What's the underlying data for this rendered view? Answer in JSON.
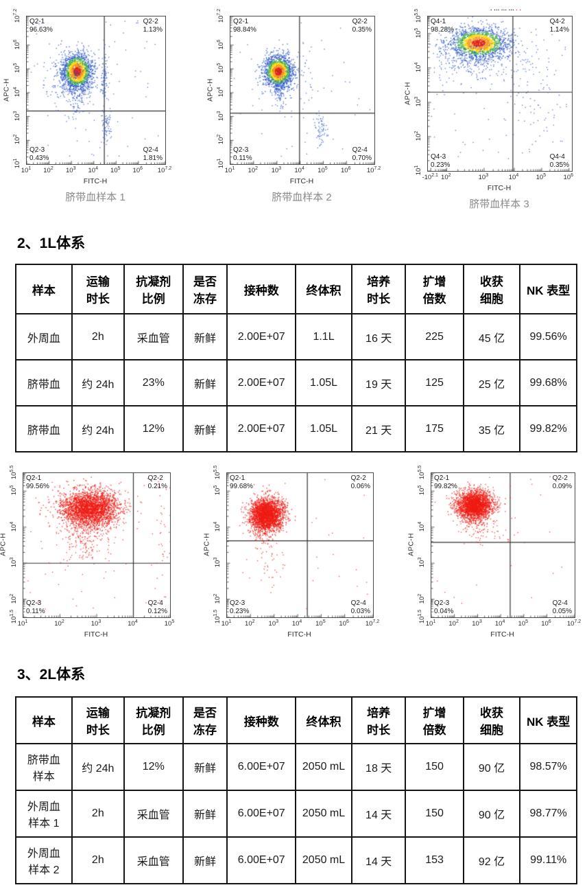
{
  "sections": {
    "s2": "2、1L体系",
    "s3": "3、2L体系"
  },
  "axis": {
    "xlabel": "FITC-H",
    "ylabel": "APC-H"
  },
  "chart_data": [
    {
      "type": "scatter",
      "style": "density",
      "caption": "脐带血样本 1",
      "xlabel": "FITC-H",
      "ylabel": "APC-H",
      "x_ticks": [
        {
          "label": "10^1",
          "f": 0
        },
        {
          "label": "10^2",
          "f": 0.161
        },
        {
          "label": "10^3",
          "f": 0.323
        },
        {
          "label": "10^4",
          "f": 0.484
        },
        {
          "label": "10^5",
          "f": 0.645
        },
        {
          "label": "10^6",
          "f": 0.806
        },
        {
          "label": "10^7.2",
          "f": 1
        }
      ],
      "y_ticks": [
        {
          "label": "10^1",
          "f": 0
        },
        {
          "label": "10^2",
          "f": 0.161
        },
        {
          "label": "10^3",
          "f": 0.323
        },
        {
          "label": "10^4",
          "f": 0.484
        },
        {
          "label": "10^5",
          "f": 0.645
        },
        {
          "label": "10^6",
          "f": 0.806
        },
        {
          "label": "10^7.2",
          "f": 1
        }
      ],
      "gate": {
        "fx": 0.56,
        "fy": 0.64
      },
      "quadrants": [
        {
          "name": "Q2-1",
          "value": "96.63%",
          "pos": "tl"
        },
        {
          "name": "Q2-2",
          "value": "1.13%",
          "pos": "tr"
        },
        {
          "name": "Q2-3",
          "value": "0.43%",
          "pos": "bl"
        },
        {
          "name": "Q2-4",
          "value": "1.81%",
          "pos": "br"
        }
      ],
      "cluster": {
        "fx": 0.36,
        "fy": 0.37,
        "sx": 0.055,
        "sy": 0.062,
        "n": 1700
      },
      "extras": [
        {
          "fx": 0.36,
          "fy": 0.52,
          "sx": 0.045,
          "sy": 0.09,
          "n": 160
        },
        {
          "fx": 0.56,
          "fy": 0.42,
          "sx": 0.014,
          "sy": 0.1,
          "n": 90
        },
        {
          "fx": 0.57,
          "fy": 0.74,
          "sx": 0.018,
          "sy": 0.055,
          "n": 70
        },
        {
          "fx": 0.3,
          "fy": 0.4,
          "sx": 0.1,
          "sy": 0.09,
          "n": 120
        }
      ],
      "noise": 70
    },
    {
      "type": "scatter",
      "style": "density",
      "caption": "脐带血样本 2",
      "xlabel": "FITC-H",
      "ylabel": "APC-H",
      "x_ticks": [
        {
          "label": "10^1",
          "f": 0
        },
        {
          "label": "10^2",
          "f": 0.161
        },
        {
          "label": "10^3",
          "f": 0.323
        },
        {
          "label": "10^4",
          "f": 0.484
        },
        {
          "label": "10^5",
          "f": 0.645
        },
        {
          "label": "10^6",
          "f": 0.806
        },
        {
          "label": "10^7.2",
          "f": 1
        }
      ],
      "y_ticks": [
        {
          "label": "10^1",
          "f": 0
        },
        {
          "label": "10^2",
          "f": 0.161
        },
        {
          "label": "10^3",
          "f": 0.323
        },
        {
          "label": "10^4",
          "f": 0.484
        },
        {
          "label": "10^5",
          "f": 0.645
        },
        {
          "label": "10^6",
          "f": 0.806
        },
        {
          "label": "10^7.2",
          "f": 1
        }
      ],
      "gate": {
        "fx": 0.48,
        "fy": 0.655
      },
      "quadrants": [
        {
          "name": "Q2-1",
          "value": "98.84%",
          "pos": "tl"
        },
        {
          "name": "Q2-2",
          "value": "0.35%",
          "pos": "tr"
        },
        {
          "name": "Q2-3",
          "value": "0.11%",
          "pos": "bl"
        },
        {
          "name": "Q2-4",
          "value": "0.70%",
          "pos": "br"
        }
      ],
      "cluster": {
        "fx": 0.33,
        "fy": 0.37,
        "sx": 0.05,
        "sy": 0.055,
        "n": 1700
      },
      "extras": [
        {
          "fx": 0.34,
          "fy": 0.5,
          "sx": 0.03,
          "sy": 0.06,
          "n": 130
        },
        {
          "fx": 0.63,
          "fy": 0.77,
          "sx": 0.018,
          "sy": 0.05,
          "n": 60
        },
        {
          "fx": 0.55,
          "fy": 0.4,
          "sx": 0.06,
          "sy": 0.12,
          "n": 35
        }
      ],
      "noise": 45
    },
    {
      "type": "scatter",
      "style": "density",
      "caption": "脐带血样本 3",
      "xlabel": "FITC-H",
      "ylabel": "APC-H",
      "mini_title": {
        "dark": "▪ ▪▪▪ ▪▪▪ ▪▪▪",
        "red": "▪ ▪"
      },
      "x_ticks": [
        {
          "label": "-10^2.1",
          "f": 0.02
        },
        {
          "label": "10^2",
          "f": 0.13
        },
        {
          "label": "10^3",
          "f": 0.39
        },
        {
          "label": "10^4",
          "f": 0.6
        },
        {
          "label": "10^5",
          "f": 0.79
        },
        {
          "label": "10^6",
          "f": 0.98
        }
      ],
      "y_ticks": [
        {
          "label": "10^1",
          "f": 0
        },
        {
          "label": "10^2",
          "f": 0.222
        },
        {
          "label": "10^3",
          "f": 0.444
        },
        {
          "label": "10^4",
          "f": 0.667
        },
        {
          "label": "10^5",
          "f": 0.889
        },
        {
          "label": "10^5.5",
          "f": 1
        }
      ],
      "gate": {
        "fx": 0.59,
        "fy": 0.49
      },
      "quadrants": [
        {
          "name": "Q4-1",
          "value": "98.28%",
          "pos": "tl"
        },
        {
          "name": "Q4-2",
          "value": "1.14%",
          "pos": "tr"
        },
        {
          "name": "Q4-3",
          "value": "0.23%",
          "pos": "bl"
        },
        {
          "name": "Q4-4",
          "value": "0.35%",
          "pos": "br"
        }
      ],
      "cluster": {
        "fx": 0.35,
        "fy": 0.17,
        "sx": 0.1,
        "sy": 0.05,
        "n": 1900
      },
      "extras": [
        {
          "fx": 0.3,
          "fy": 0.29,
          "sx": 0.12,
          "sy": 0.06,
          "n": 220
        },
        {
          "fx": 0.7,
          "fy": 0.33,
          "sx": 0.08,
          "sy": 0.14,
          "n": 60
        },
        {
          "fx": 0.76,
          "fy": 0.66,
          "sx": 0.05,
          "sy": 0.12,
          "n": 25
        }
      ],
      "noise": 90
    },
    {
      "type": "scatter",
      "style": "red",
      "caption": "",
      "xlabel": "FITC-H",
      "ylabel": "APC-H",
      "x_ticks": [
        {
          "label": "10^1",
          "f": 0
        },
        {
          "label": "10^2",
          "f": 0.25
        },
        {
          "label": "10^3",
          "f": 0.5
        },
        {
          "label": "10^4",
          "f": 0.75
        },
        {
          "label": "10^5",
          "f": 1
        }
      ],
      "y_ticks": [
        {
          "label": "10^1.5",
          "f": 0
        },
        {
          "label": "10^2",
          "f": 0.125
        },
        {
          "label": "10^3",
          "f": 0.375
        },
        {
          "label": "10^4",
          "f": 0.625
        },
        {
          "label": "10^5",
          "f": 0.875
        },
        {
          "label": "10^5.5",
          "f": 1
        }
      ],
      "gate": {
        "fx": 0.75,
        "fy": 0.625
      },
      "quadrants": [
        {
          "name": "Q2-1",
          "value": "99.56%",
          "pos": "tl"
        },
        {
          "name": "Q2-2",
          "value": "0.21%",
          "pos": "tr"
        },
        {
          "name": "Q2-3",
          "value": "0.11%",
          "pos": "bl"
        },
        {
          "name": "Q2-4",
          "value": "0.12%",
          "pos": "br"
        }
      ],
      "cluster": {
        "fx": 0.45,
        "fy": 0.24,
        "sx": 0.1,
        "sy": 0.065,
        "n": 2700
      },
      "extras": [
        {
          "fx": 0.42,
          "fy": 0.42,
          "sx": 0.09,
          "sy": 0.1,
          "n": 260
        },
        {
          "fx": 0.95,
          "fy": 0.45,
          "sx": 0.025,
          "sy": 0.22,
          "n": 35
        }
      ],
      "noise": 55
    },
    {
      "type": "scatter",
      "style": "red",
      "caption": "",
      "xlabel": "FITC-H",
      "ylabel": "APC-H",
      "x_ticks": [
        {
          "label": "10^1",
          "f": 0
        },
        {
          "label": "10^2",
          "f": 0.161
        },
        {
          "label": "10^3",
          "f": 0.323
        },
        {
          "label": "10^4",
          "f": 0.484
        },
        {
          "label": "10^5",
          "f": 0.645
        },
        {
          "label": "10^6",
          "f": 0.806
        },
        {
          "label": "10^7.2",
          "f": 1
        }
      ],
      "y_ticks": [
        {
          "label": "10^1.5",
          "f": 0
        },
        {
          "label": "10^2",
          "f": 0.125
        },
        {
          "label": "10^3",
          "f": 0.375
        },
        {
          "label": "10^4",
          "f": 0.625
        },
        {
          "label": "10^5",
          "f": 0.875
        },
        {
          "label": "10^5.5",
          "f": 1
        }
      ],
      "gate": {
        "fx": 0.55,
        "fy": 0.47
      },
      "quadrants": [
        {
          "name": "Q2-1",
          "value": "99.68%",
          "pos": "tl"
        },
        {
          "name": "Q2-2",
          "value": "0.06%",
          "pos": "tr"
        },
        {
          "name": "Q2-3",
          "value": "0.23%",
          "pos": "bl"
        },
        {
          "name": "Q2-4",
          "value": "0.03%",
          "pos": "br"
        }
      ],
      "cluster": {
        "fx": 0.27,
        "fy": 0.28,
        "sx": 0.055,
        "sy": 0.055,
        "n": 2500
      },
      "extras": [
        {
          "fx": 0.24,
          "fy": 0.38,
          "sx": 0.05,
          "sy": 0.06,
          "n": 210
        },
        {
          "fx": 0.3,
          "fy": 0.58,
          "sx": 0.04,
          "sy": 0.12,
          "n": 35
        }
      ],
      "noise": 28
    },
    {
      "type": "scatter",
      "style": "red",
      "caption": "",
      "xlabel": "FITC-H",
      "ylabel": "APC-H",
      "x_ticks": [
        {
          "label": "10^1",
          "f": 0
        },
        {
          "label": "10^2",
          "f": 0.161
        },
        {
          "label": "10^3",
          "f": 0.323
        },
        {
          "label": "10^4",
          "f": 0.484
        },
        {
          "label": "10^5",
          "f": 0.645
        },
        {
          "label": "10^6",
          "f": 0.806
        },
        {
          "label": "10^7.2",
          "f": 1
        }
      ],
      "y_ticks": [
        {
          "label": "10^1.5",
          "f": 0
        },
        {
          "label": "10^2",
          "f": 0.125
        },
        {
          "label": "10^3",
          "f": 0.375
        },
        {
          "label": "10^4",
          "f": 0.625
        },
        {
          "label": "10^5",
          "f": 0.875
        },
        {
          "label": "10^5.5",
          "f": 1
        }
      ],
      "gate": {
        "fx": 0.55,
        "fy": 0.48
      },
      "quadrants": [
        {
          "name": "Q2-1",
          "value": "99.82%",
          "pos": "tl"
        },
        {
          "name": "Q2-2",
          "value": "0.09%",
          "pos": "tr"
        },
        {
          "name": "Q2-3",
          "value": "0.04%",
          "pos": "bl"
        },
        {
          "name": "Q2-4",
          "value": "0.05%",
          "pos": "br"
        }
      ],
      "cluster": {
        "fx": 0.3,
        "fy": 0.22,
        "sx": 0.062,
        "sy": 0.05,
        "n": 2300
      },
      "extras": [
        {
          "fx": 0.3,
          "fy": 0.33,
          "sx": 0.05,
          "sy": 0.07,
          "n": 160
        },
        {
          "fx": 0.46,
          "fy": 0.35,
          "sx": 0.09,
          "sy": 0.1,
          "n": 30
        }
      ],
      "noise": 28
    }
  ],
  "tables": {
    "t1": {
      "headers": [
        "样本",
        "运输\n时长",
        "抗凝剂\n比例",
        "是否\n冻存",
        "接种数",
        "终体积",
        "培养\n时长",
        "扩增\n倍数",
        "收获\n细胞",
        "NK 表型"
      ],
      "rows": [
        [
          "外周血",
          "2h",
          "采血管",
          "新鲜",
          "2.00E+07",
          "1.1L",
          "16 天",
          "225",
          "45 亿",
          "99.56%"
        ],
        [
          "脐带血",
          "约 24h",
          "23%",
          "新鲜",
          "2.00E+07",
          "1.05L",
          "19 天",
          "125",
          "25 亿",
          "99.68%"
        ],
        [
          "脐带血",
          "约 24h",
          "12%",
          "新鲜",
          "2.00E+07",
          "1.05L",
          "21 天",
          "175",
          "35 亿",
          "99.82%"
        ]
      ]
    },
    "t2": {
      "headers": [
        "样本",
        "运输\n时长",
        "抗凝剂\n比例",
        "是否\n冻存",
        "接种数",
        "终体积",
        "培养\n时长",
        "扩增\n倍数",
        "收获\n细胞",
        "NK 表型"
      ],
      "rows": [
        [
          "脐带血\n样本",
          "约 24h",
          "12%",
          "新鲜",
          "6.00E+07",
          "2050 mL",
          "18 天",
          "150",
          "90 亿",
          "98.57%"
        ],
        [
          "外周血\n样本 1",
          "2h",
          "采血管",
          "新鲜",
          "6.00E+07",
          "2050 mL",
          "14 天",
          "150",
          "90 亿",
          "98.77%"
        ],
        [
          "外周血\n样本 2",
          "2h",
          "采血管",
          "新鲜",
          "6.00E+07",
          "2050 mL",
          "14 天",
          "153",
          "92 亿",
          "99.11%"
        ]
      ]
    }
  },
  "colors": {
    "density_palette": {
      "core": "#e02314",
      "hot": "#f7941d",
      "warm": "#ffd400",
      "mid": "#3fae49",
      "outer": "#2a55c8"
    },
    "red_point": "#ee1c14",
    "gate_line": "#2e2e2e"
  }
}
